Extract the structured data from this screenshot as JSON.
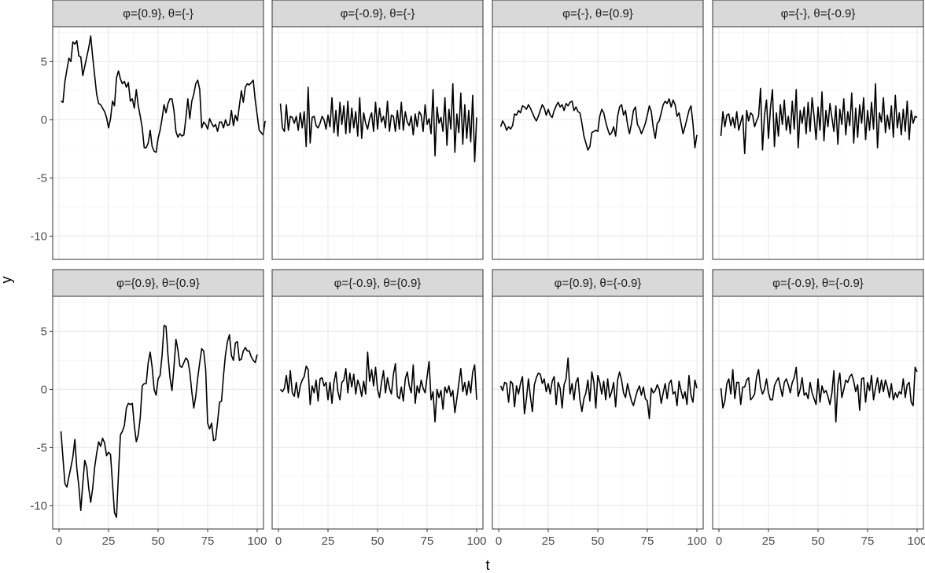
{
  "chart_data": {
    "type": "line",
    "layout": "facet grid, 2 rows x 4 columns, shared axes",
    "xlabel": "t",
    "ylabel": "y",
    "xlim": [
      0,
      100
    ],
    "ylim": [
      -12,
      8
    ],
    "x_ticks": [
      "0",
      "25",
      "50",
      "75",
      "100"
    ],
    "y_ticks": [
      "5",
      "0",
      "-5",
      "-10"
    ],
    "x_tick_values": [
      0,
      25,
      50,
      75,
      100
    ],
    "y_tick_values": [
      5,
      0,
      -5,
      -10
    ],
    "grid": true,
    "colors": {
      "line": "#000000",
      "strip_fill": "#d9d9d9",
      "panel_border": "#333333",
      "grid_major": "#ebebeb",
      "grid_minor": "#f5f5f5"
    },
    "panels": [
      {
        "title": "φ={0.9}, θ={-}",
        "x_start": 1,
        "x_step": 1,
        "y": [
          1.6,
          1.5,
          3.3,
          4.3,
          5.3,
          5.0,
          6.7,
          6.5,
          6.8,
          5.5,
          5.4,
          3.8,
          4.6,
          5.4,
          6.2,
          7.2,
          5.4,
          3.8,
          2.2,
          1.4,
          1.3,
          1.0,
          0.7,
          0.2,
          -0.7,
          0.1,
          1.6,
          1.2,
          3.6,
          4.2,
          3.5,
          3.1,
          3.3,
          2.8,
          3.2,
          1.6,
          1.8,
          1.0,
          2.6,
          1.2,
          0.3,
          -0.7,
          -2.4,
          -2.4,
          -2.0,
          -0.9,
          -2.3,
          -2.7,
          -2.8,
          -1.6,
          -0.9,
          0.1,
          1.3,
          0.6,
          1.4,
          1.8,
          1.8,
          0.8,
          -1.0,
          -1.5,
          -1.2,
          -1.4,
          -1.3,
          0.1,
          1.8,
          0.1,
          1.6,
          2.2,
          3.1,
          3.4,
          2.6,
          -0.7,
          -0.2,
          -0.4,
          -0.8,
          0.1,
          -0.3,
          -0.6,
          -0.4,
          -1.0,
          -0.2,
          -0.2,
          -0.7,
          0.0,
          -0.5,
          -0.4,
          0.8,
          -0.5,
          0.4,
          -0.1,
          1.2,
          2.5,
          1.5,
          2.8,
          3.1,
          3.0,
          3.2,
          3.4,
          1.7,
          0.4,
          -0.9,
          -1.1,
          -1.3,
          -0.1
        ]
      },
      {
        "title": "φ={-0.9}, θ={-}",
        "x_start": 1,
        "x_step": 1,
        "y": [
          1.4,
          -0.7,
          -1.0,
          1.3,
          -0.9,
          0.3,
          0.2,
          -0.3,
          0.3,
          -0.9,
          0.6,
          -0.7,
          0.7,
          -2.3,
          2.8,
          -2.0,
          0.2,
          0.3,
          -0.5,
          -0.7,
          -0.3,
          0.3,
          0.0,
          -0.8,
          0.4,
          -0.6,
          1.9,
          -1.1,
          0.8,
          -1.4,
          1.5,
          -0.4,
          1.2,
          -1.2,
          1.6,
          -1.1,
          1.0,
          -0.7,
          0.7,
          -1.4,
          1.9,
          -1.6,
          0.6,
          -0.3,
          -0.8,
          0.1,
          0.6,
          -1.0,
          1.5,
          -0.8,
          1.0,
          -0.2,
          0.3,
          -0.7,
          1.6,
          -1.0,
          0.4,
          0.3,
          -1.0,
          0.8,
          -0.8,
          1.5,
          -0.9,
          0.7,
          -0.2,
          -0.5,
          0.3,
          -1.3,
          0.5,
          -0.6,
          0.7,
          0.4,
          -1.0,
          1.3,
          -0.4,
          0.1,
          -1.2,
          2.6,
          -3.1,
          1.1,
          -0.3,
          0.2,
          -1.0,
          1.9,
          -2.2,
          0.9,
          -0.8,
          3.1,
          -2.8,
          0.5,
          -1.1,
          2.3,
          -2.1,
          1.3,
          -1.6,
          0.8,
          -1.9,
          2.1,
          -3.6,
          0.2
        ]
      },
      {
        "title": "φ={-}, θ={0.9}",
        "x_start": 1,
        "x_step": 1,
        "y": [
          -0.6,
          -0.1,
          -0.4,
          -0.9,
          -0.6,
          -0.8,
          -0.5,
          0.5,
          0.4,
          0.8,
          0.6,
          1.2,
          1.1,
          0.9,
          1.3,
          1.0,
          0.6,
          0.2,
          -0.1,
          0.3,
          0.8,
          1.3,
          1.0,
          0.4,
          0.9,
          0.4,
          0.2,
          0.8,
          1.2,
          1.5,
          1.1,
          1.3,
          0.8,
          1.4,
          1.2,
          1.5,
          1.6,
          0.8,
          1.1,
          0.7,
          0.6,
          -0.3,
          -1.4,
          -2.0,
          -2.6,
          -2.3,
          -1.1,
          -1.0,
          -0.9,
          -1.0,
          0.3,
          0.9,
          0.6,
          -0.2,
          -0.8,
          -1.3,
          -1.1,
          -0.6,
          -1.4,
          0.3,
          1.1,
          1.3,
          0.4,
          0.8,
          -0.4,
          -1.2,
          -0.3,
          0.8,
          1.1,
          -0.4,
          -0.7,
          -1.2,
          -0.8,
          -0.3,
          0.4,
          1.2,
          0.7,
          -0.7,
          -1.6,
          -0.3,
          -0.1,
          0.6,
          1.3,
          1.6,
          1.4,
          1.8,
          1.1,
          1.7,
          1.3,
          0.3,
          0.6,
          -0.3,
          -1.2,
          -0.6,
          0.1,
          0.8,
          1.2,
          -0.3,
          -2.4,
          -1.3
        ]
      },
      {
        "title": "φ={-}, θ={-0.9}",
        "x_start": 1,
        "x_step": 1,
        "y": [
          -1.4,
          0.7,
          -0.6,
          0.4,
          0.5,
          -0.5,
          0.2,
          -0.7,
          0.7,
          -0.9,
          -0.2,
          0.4,
          -2.9,
          0.8,
          -0.1,
          0.6,
          0.4,
          -0.6,
          -0.1,
          0.3,
          2.7,
          -2.6,
          0.4,
          1.7,
          -1.6,
          1.0,
          2.6,
          -2.3,
          0.6,
          -1.4,
          1.3,
          -0.4,
          1.7,
          -0.9,
          0.3,
          -1.2,
          1.6,
          -0.8,
          2.6,
          -2.4,
          0.8,
          -0.3,
          1.1,
          -1.2,
          1.5,
          -1.0,
          1.9,
          0.3,
          -1.7,
          1.1,
          -0.9,
          2.4,
          -1.8,
          0.8,
          -0.6,
          1.4,
          0.2,
          -1.0,
          1.2,
          -2.1,
          0.9,
          -0.4,
          1.8,
          -1.3,
          0.7,
          -0.5,
          2.3,
          -2.0,
          1.0,
          -1.5,
          1.3,
          -0.3,
          1.9,
          -1.7,
          0.8,
          -0.9,
          1.5,
          -0.8,
          3.1,
          -2.4,
          0.6,
          -0.2,
          1.9,
          -1.1,
          0.4,
          -0.8,
          1.2,
          -1.5,
          2.1,
          -0.7,
          0.6,
          -1.3,
          0.9,
          -1.0,
          1.6,
          -1.7,
          0.8,
          -0.3,
          0.3,
          0.2
        ]
      },
      {
        "title": "φ={0.9}, θ={0.9}",
        "x_start": 1,
        "x_step": 1,
        "y": [
          -3.6,
          -5.9,
          -8.1,
          -8.4,
          -7.5,
          -6.7,
          -5.8,
          -4.3,
          -6.8,
          -8.3,
          -10.4,
          -8.1,
          -6.1,
          -6.7,
          -8.5,
          -9.7,
          -8.5,
          -6.7,
          -5.5,
          -4.5,
          -4.9,
          -4.2,
          -4.6,
          -5.7,
          -5.4,
          -5.6,
          -8.1,
          -10.6,
          -11.0,
          -7.3,
          -3.9,
          -3.6,
          -3.1,
          -1.6,
          -1.2,
          -1.3,
          -1.2,
          -3.1,
          -4.5,
          -3.9,
          -2.4,
          0.3,
          0.5,
          0.5,
          2.3,
          3.2,
          1.9,
          0.0,
          -0.5,
          0.9,
          1.2,
          2.9,
          5.5,
          5.4,
          2.9,
          1.0,
          -0.1,
          1.9,
          4.3,
          3.4,
          2.0,
          1.9,
          2.3,
          2.7,
          2.5,
          1.5,
          -0.2,
          -1.6,
          -0.6,
          1.0,
          2.3,
          3.5,
          3.3,
          1.7,
          -2.9,
          -3.4,
          -2.9,
          -4.4,
          -4.3,
          -2.8,
          -1.1,
          -1.0,
          1.2,
          3.0,
          4.1,
          4.7,
          2.9,
          2.5,
          4.0,
          4.1,
          2.5,
          2.6,
          3.3,
          3.6,
          3.3,
          3.3,
          2.8,
          2.5,
          2.3,
          3.0
        ]
      },
      {
        "title": "φ={-0.9}, θ={0.9}",
        "x_start": 1,
        "x_step": 1,
        "y": [
          0.0,
          -0.2,
          0.1,
          1.2,
          -0.3,
          1.6,
          -0.3,
          -0.6,
          0.6,
          -0.7,
          0.3,
          0.8,
          1.1,
          2.0,
          1.7,
          -1.3,
          0.3,
          -0.3,
          0.8,
          -1.0,
          0.9,
          1.0,
          0.3,
          0.6,
          -0.9,
          0.6,
          -1.2,
          0.6,
          1.5,
          -0.2,
          -0.9,
          0.6,
          0.8,
          1.8,
          -0.3,
          1.4,
          0.2,
          1.3,
          -0.4,
          0.8,
          0.3,
          -0.6,
          0.7,
          -0.4,
          3.2,
          0.7,
          1.7,
          0.3,
          1.9,
          0.0,
          -0.7,
          0.6,
          1.6,
          -0.3,
          1.0,
          0.1,
          -0.4,
          1.3,
          2.2,
          -0.6,
          -0.8,
          0.2,
          -1.0,
          0.9,
          1.5,
          0.3,
          -0.3,
          2.1,
          -1.2,
          0.3,
          -0.3,
          0.8,
          0.1,
          -0.3,
          1.1,
          2.4,
          -0.9,
          -0.2,
          -2.8,
          0.0,
          -0.7,
          -0.1,
          -1.7,
          0.2,
          -0.3,
          0.3,
          -0.6,
          -0.1,
          -2.0,
          -0.8,
          0.5,
          1.8,
          -0.2,
          0.6,
          -0.5,
          0.7,
          -0.3,
          1.5,
          2.1,
          -0.9
        ]
      },
      {
        "title": "φ={0.9}, θ={-0.9}",
        "x_start": 1,
        "x_step": 1,
        "y": [
          0.3,
          -0.1,
          0.6,
          0.5,
          -1.1,
          0.7,
          0.5,
          -1.5,
          0.3,
          -0.4,
          0.5,
          1.1,
          -2.1,
          -0.8,
          0.9,
          -0.6,
          -1.9,
          0.4,
          1.0,
          1.4,
          1.3,
          0.5,
          0.9,
          -0.2,
          0.5,
          -0.4,
          0.7,
          1.1,
          -1.3,
          0.6,
          0.1,
          -1.6,
          0.4,
          0.9,
          2.7,
          -0.4,
          0.5,
          -0.9,
          0.6,
          1.0,
          -0.9,
          -1.9,
          -0.8,
          -0.3,
          0.8,
          -1.0,
          1.5,
          0.6,
          -1.6,
          1.2,
          0.6,
          -0.4,
          0.7,
          -0.9,
          0.9,
          -0.7,
          -0.2,
          0.6,
          -1.5,
          0.8,
          1.5,
          0.8,
          -0.3,
          -0.7,
          0.5,
          -0.3,
          -1.0,
          -1.4,
          -0.7,
          -0.1,
          0.3,
          -0.5,
          0.2,
          -0.8,
          -1.0,
          -2.5,
          0.1,
          -0.3,
          -0.1,
          0.4,
          0.0,
          -1.2,
          -0.3,
          0.5,
          -0.8,
          0.5,
          0.8,
          -0.4,
          -0.2,
          -1.4,
          0.7,
          -0.1,
          -0.8,
          -0.2,
          -1.3,
          1.2,
          -0.5,
          -1.1,
          0.8,
          0.1
        ]
      },
      {
        "title": "φ={-0.9}, θ={-0.9}",
        "x_start": 1,
        "x_step": 1,
        "y": [
          0.1,
          -1.6,
          -1.0,
          0.5,
          0.9,
          -0.4,
          1.7,
          -0.8,
          0.6,
          0.6,
          -1.3,
          0.2,
          0.2,
          0.8,
          1.0,
          -0.9,
          -0.7,
          -0.4,
          1.1,
          1.7,
          0.2,
          -0.4,
          0.0,
          0.9,
          -0.3,
          -0.9,
          -0.9,
          0.3,
          0.7,
          1.0,
          0.2,
          -0.6,
          0.6,
          0.9,
          0.4,
          -0.3,
          0.6,
          1.0,
          1.9,
          -0.6,
          0.0,
          1.0,
          -0.5,
          -0.3,
          -0.8,
          0.6,
          -0.3,
          -0.8,
          -1.3,
          0.9,
          -1.1,
          0.3,
          -0.3,
          -0.1,
          -0.6,
          -1.3,
          -0.3,
          1.6,
          -2.8,
          0.4,
          1.4,
          -0.7,
          0.0,
          0.8,
          0.6,
          1.1,
          1.3,
          0.7,
          -0.2,
          0.4,
          -1.8,
          0.9,
          1.0,
          -1.1,
          0.6,
          -0.1,
          1.2,
          -0.9,
          0.1,
          1.0,
          -0.3,
          0.8,
          -0.2,
          0.8,
          0.2,
          -0.7,
          0.5,
          -0.9,
          -0.3,
          -0.7,
          -0.2,
          -0.4,
          0.9,
          -0.7,
          0.4,
          0.6,
          -1.1,
          -1.4,
          1.9,
          1.5
        ]
      }
    ]
  }
}
